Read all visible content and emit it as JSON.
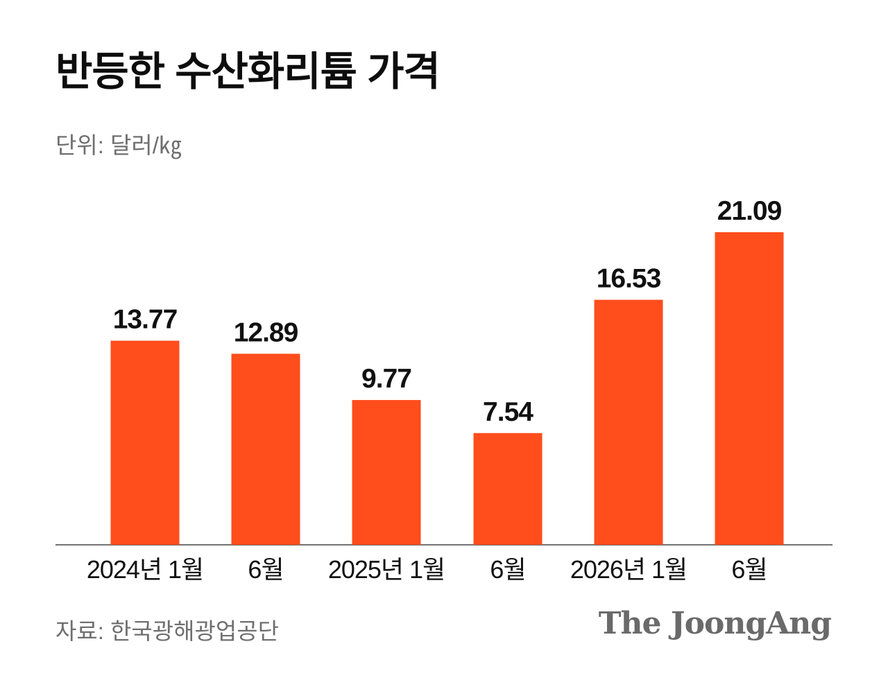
{
  "title": "반등한 수산화리튬 가격",
  "unit_label": "단위: 달러/㎏",
  "source": "자료: 한국광해광업공단",
  "logo": "The JoongAng",
  "colors": {
    "bar": "#ff4d1c",
    "axis": "#444444",
    "text": "#111111",
    "muted": "#6f6f6f"
  },
  "chart_data": {
    "type": "bar",
    "categories": [
      "2024년 1월",
      "6월",
      "2025년 1월",
      "6월",
      "2026년 1월",
      "6월"
    ],
    "values": [
      13.77,
      12.89,
      9.77,
      7.54,
      16.53,
      21.09
    ],
    "value_labels": [
      "13.77",
      "12.89",
      "9.77",
      "7.54",
      "16.53",
      "21.09"
    ],
    "title": "반등한 수산화리튬 가격",
    "ylabel": "단위: 달러/㎏",
    "ylim": [
      0,
      21.09
    ],
    "grid": false,
    "legend": "none"
  }
}
